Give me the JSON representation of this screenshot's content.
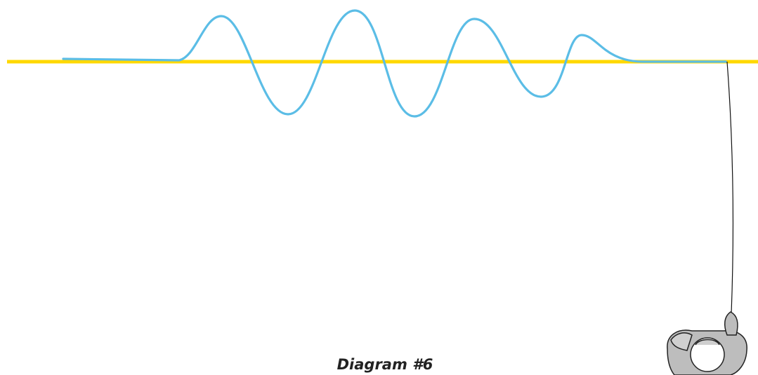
{
  "caption": "Diagram #6"
}
